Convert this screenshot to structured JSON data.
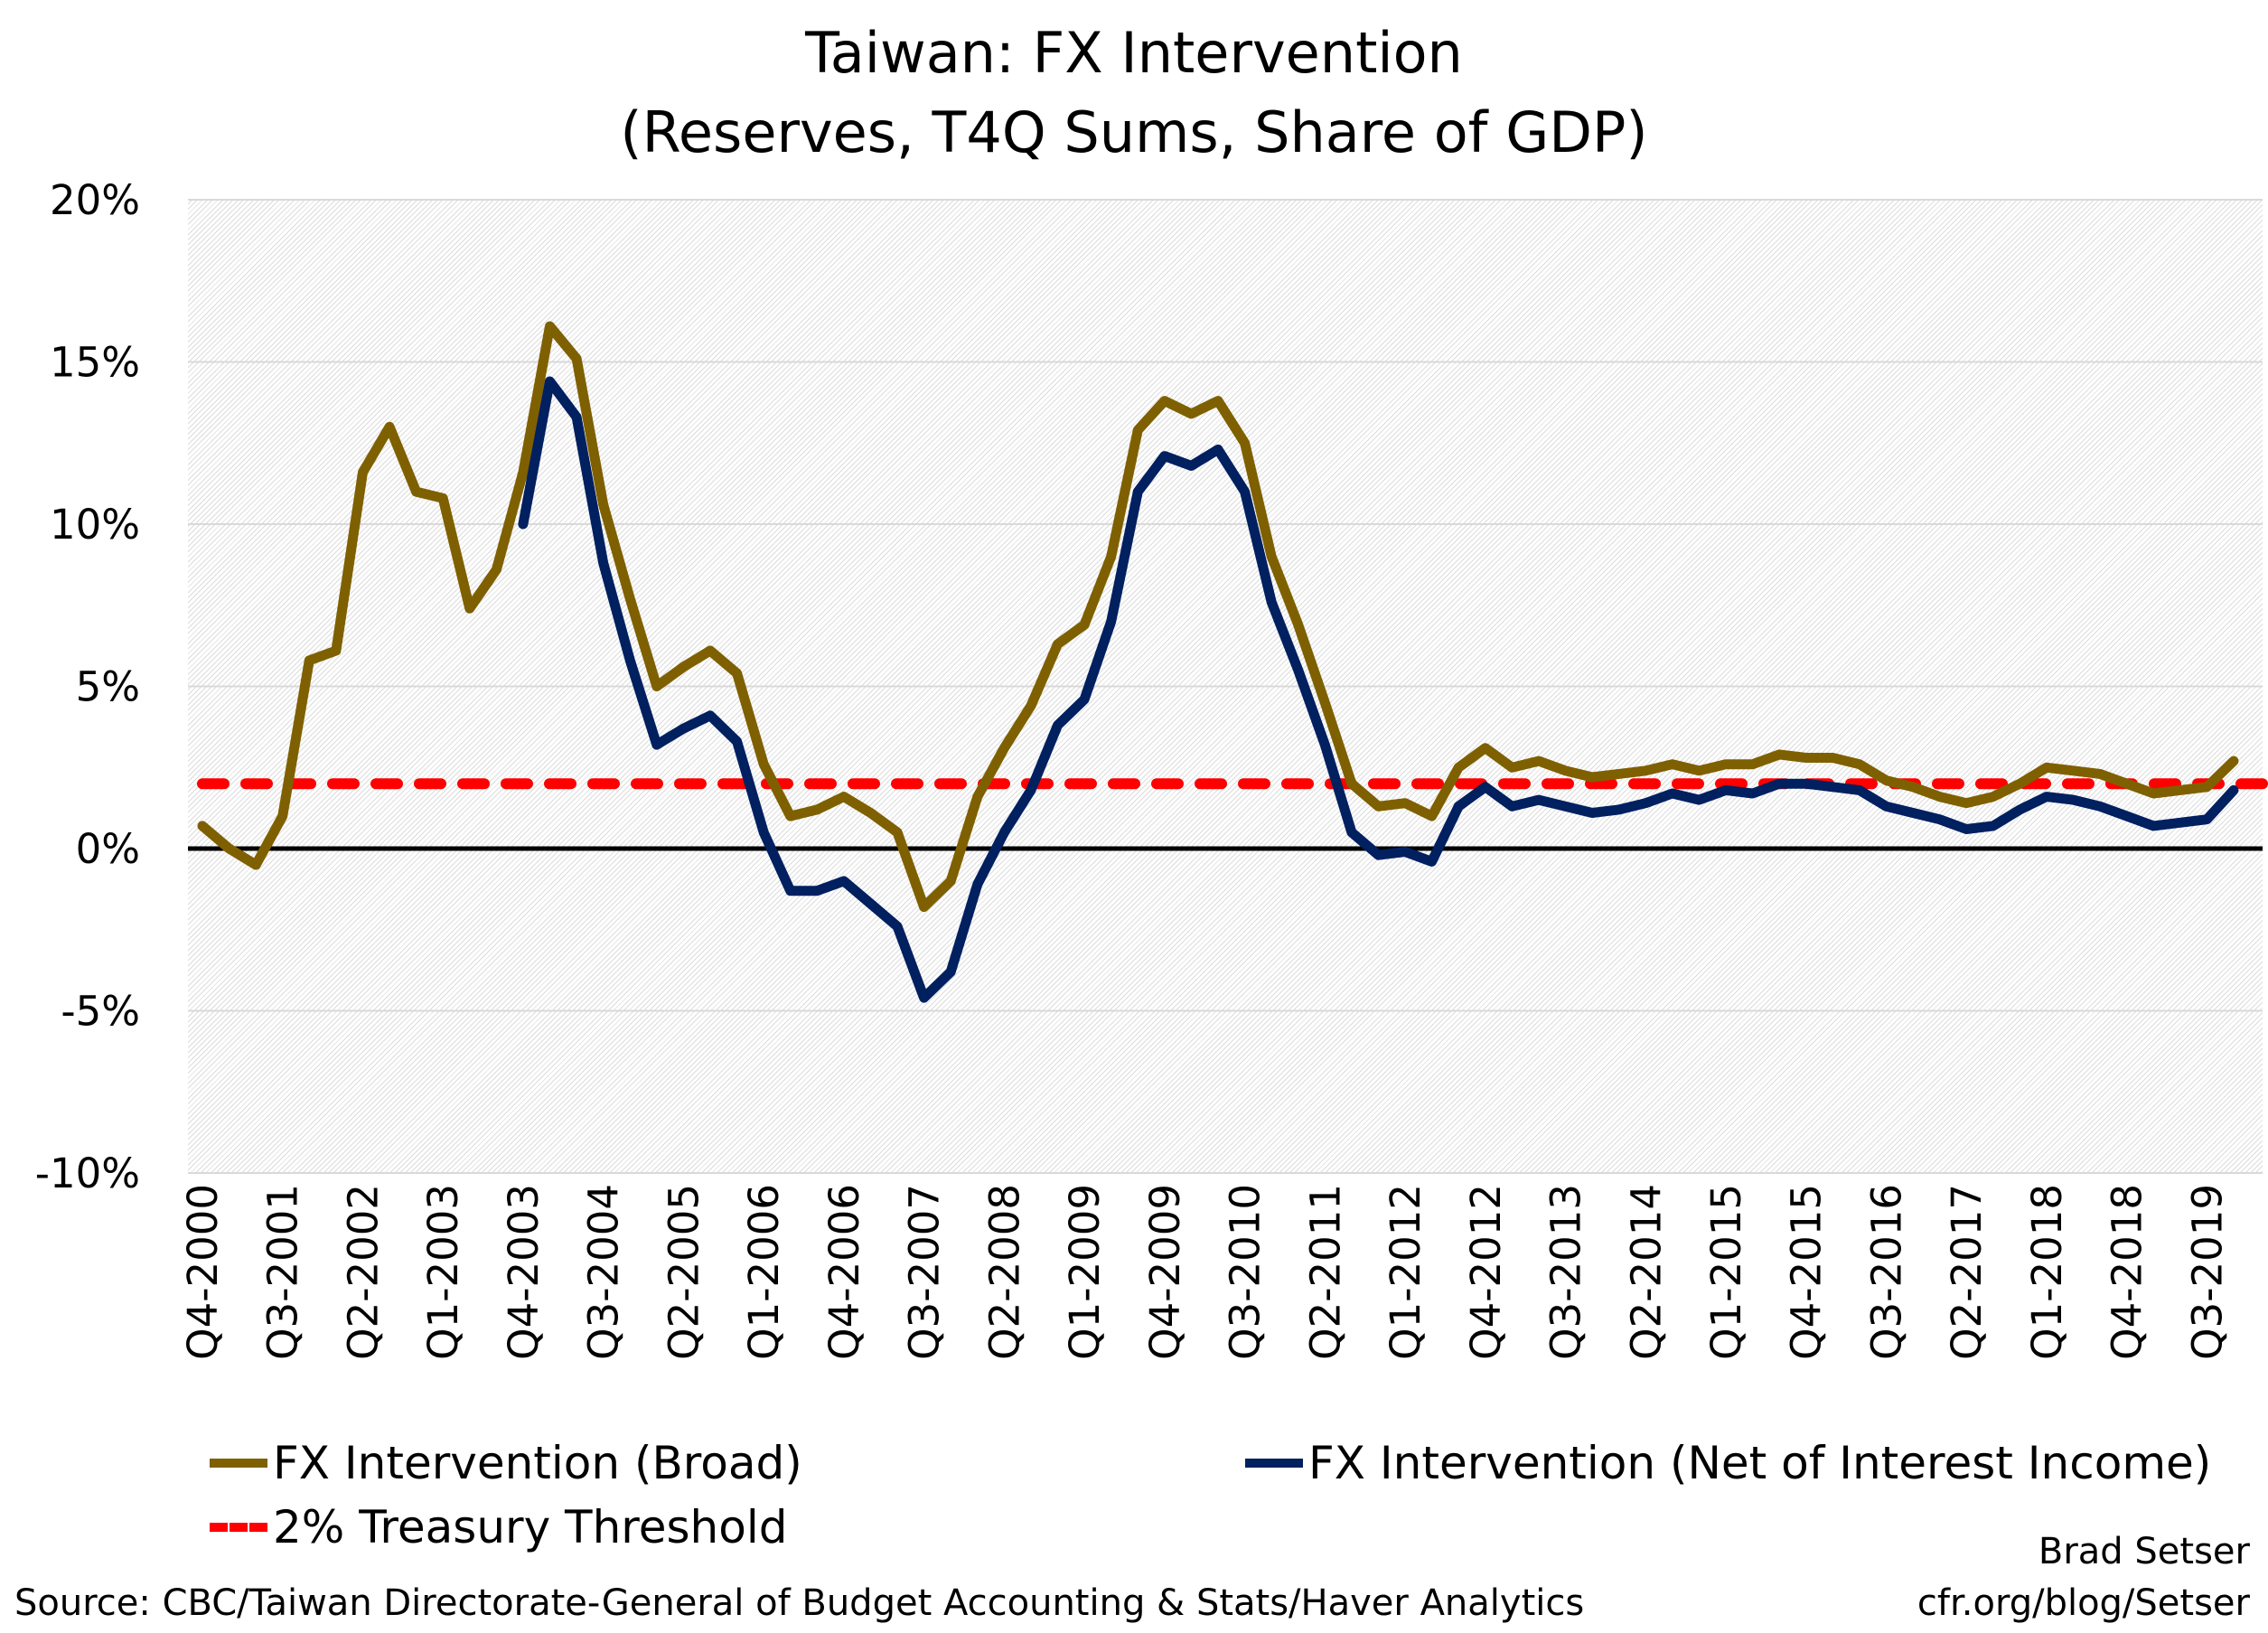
{
  "chart_data": {
    "type": "line",
    "title": "Taiwan: FX Intervention",
    "subtitle": "(Reserves, T4Q Sums, Share of GDP)",
    "xlabel": "",
    "ylabel": "",
    "ylim": [
      -10,
      20
    ],
    "yticks": [
      "20%",
      "15%",
      "10%",
      "5%",
      "0%",
      "-5%",
      "-10%"
    ],
    "ytick_values": [
      20,
      15,
      10,
      5,
      0,
      -5,
      -10
    ],
    "grid": true,
    "legend_placement": "bottom",
    "x": [
      "Q4-2000",
      "Q1-2001",
      "Q2-2001",
      "Q3-2001",
      "Q4-2001",
      "Q1-2002",
      "Q2-2002",
      "Q3-2002",
      "Q4-2002",
      "Q1-2003",
      "Q2-2003",
      "Q3-2003",
      "Q4-2003",
      "Q1-2004",
      "Q2-2004",
      "Q3-2004",
      "Q4-2004",
      "Q1-2005",
      "Q2-2005",
      "Q3-2005",
      "Q4-2005",
      "Q1-2006",
      "Q2-2006",
      "Q3-2006",
      "Q4-2006",
      "Q1-2007",
      "Q2-2007",
      "Q3-2007",
      "Q4-2007",
      "Q1-2008",
      "Q2-2008",
      "Q3-2008",
      "Q4-2008",
      "Q1-2009",
      "Q2-2009",
      "Q3-2009",
      "Q4-2009",
      "Q1-2010",
      "Q2-2010",
      "Q3-2010",
      "Q4-2010",
      "Q1-2011",
      "Q2-2011",
      "Q3-2011",
      "Q4-2011",
      "Q1-2012",
      "Q2-2012",
      "Q3-2012",
      "Q4-2012",
      "Q1-2013",
      "Q2-2013",
      "Q3-2013",
      "Q4-2013",
      "Q1-2014",
      "Q2-2014",
      "Q3-2014",
      "Q4-2014",
      "Q1-2015",
      "Q2-2015",
      "Q3-2015",
      "Q4-2015",
      "Q1-2016",
      "Q2-2016",
      "Q3-2016",
      "Q4-2016",
      "Q1-2017",
      "Q2-2017",
      "Q3-2017",
      "Q4-2017",
      "Q1-2018",
      "Q2-2018",
      "Q3-2018",
      "Q4-2018",
      "Q1-2019",
      "Q2-2019",
      "Q3-2019",
      "Q4-2019"
    ],
    "xticks": [
      "Q4-2000",
      "Q3-2001",
      "Q2-2002",
      "Q1-2003",
      "Q4-2003",
      "Q3-2004",
      "Q2-2005",
      "Q1-2006",
      "Q4-2006",
      "Q3-2007",
      "Q2-2008",
      "Q1-2009",
      "Q4-2009",
      "Q3-2010",
      "Q2-2011",
      "Q1-2012",
      "Q4-2012",
      "Q3-2013",
      "Q2-2014",
      "Q1-2015",
      "Q4-2015",
      "Q3-2016",
      "Q2-2017",
      "Q1-2018",
      "Q4-2018",
      "Q3-2019"
    ],
    "series": [
      {
        "name": "FX Intervention (Broad)",
        "color": "#7f6000",
        "values": [
          0.7,
          0.0,
          -0.5,
          1.0,
          5.8,
          6.1,
          11.6,
          13.0,
          11.0,
          10.8,
          7.4,
          8.6,
          11.6,
          16.1,
          15.1,
          10.6,
          7.7,
          5.0,
          5.6,
          6.1,
          5.4,
          2.6,
          1.0,
          1.2,
          1.6,
          1.1,
          0.5,
          -1.8,
          -1.0,
          1.6,
          3.1,
          4.4,
          6.3,
          6.9,
          9.0,
          12.9,
          13.8,
          13.4,
          13.8,
          12.5,
          9.0,
          6.9,
          4.5,
          2.0,
          1.3,
          1.4,
          1.0,
          2.5,
          3.1,
          2.5,
          2.7,
          2.4,
          2.2,
          2.3,
          2.4,
          2.6,
          2.4,
          2.6,
          2.6,
          2.9,
          2.8,
          2.8,
          2.6,
          2.1,
          1.9,
          1.6,
          1.4,
          1.6,
          2.0,
          2.5,
          2.4,
          2.3,
          2.0,
          1.7,
          1.8,
          1.9,
          2.7
        ]
      },
      {
        "name": "FX Intervention (Net of Interest Income)",
        "color": "#002060",
        "values": [
          null,
          null,
          null,
          null,
          null,
          null,
          null,
          null,
          null,
          null,
          null,
          null,
          10.0,
          14.4,
          13.3,
          8.8,
          5.8,
          3.2,
          3.7,
          4.1,
          3.3,
          0.5,
          -1.3,
          -1.3,
          -1.0,
          -1.7,
          -2.4,
          -4.6,
          -3.8,
          -1.1,
          0.5,
          1.8,
          3.8,
          4.6,
          7.0,
          11.0,
          12.1,
          11.8,
          12.3,
          11.0,
          7.6,
          5.5,
          3.2,
          0.5,
          -0.2,
          -0.1,
          -0.4,
          1.3,
          1.9,
          1.3,
          1.5,
          1.3,
          1.1,
          1.2,
          1.4,
          1.7,
          1.5,
          1.8,
          1.7,
          2.0,
          2.0,
          1.9,
          1.8,
          1.3,
          1.1,
          0.9,
          0.6,
          0.7,
          1.2,
          1.6,
          1.5,
          1.3,
          1.0,
          0.7,
          0.8,
          0.9,
          1.8
        ]
      },
      {
        "name": "2% Treasury Threshold",
        "color": "#ff0000",
        "style": "dashed",
        "constant": 2
      }
    ],
    "source": "Source: CBC/Taiwan Directorate-General of Budget Accounting & Stats/Haver Analytics",
    "author": "Brad Setser",
    "author_url": "cfr.org/blog/Setser"
  }
}
